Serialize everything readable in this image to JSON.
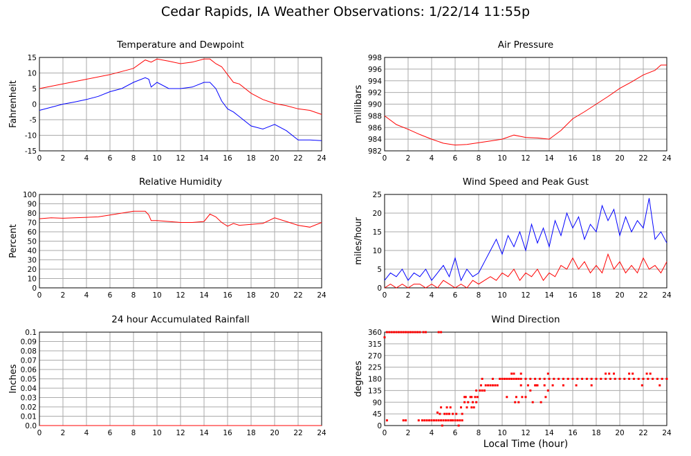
{
  "page_title": "Cedar Rapids, IA Weather Observations: 1/22/14 11:55p",
  "x_axis_label": "Local Time (hour)",
  "colors": {
    "red": "#ff0000",
    "blue": "#0000ff",
    "grid": "#aaaaaa"
  },
  "chart_data": [
    {
      "id": "temp",
      "type": "line",
      "title": "Temperature and Dewpoint",
      "xlabel": "",
      "ylabel": "Fahrenheit",
      "xlim": [
        0,
        24
      ],
      "ylim": [
        -15,
        15
      ],
      "xticks": [
        0,
        2,
        4,
        6,
        8,
        10,
        12,
        14,
        16,
        18,
        20,
        22,
        24
      ],
      "yticks": [
        -15,
        -10,
        -5,
        0,
        5,
        10,
        15
      ],
      "grid": true,
      "series": [
        {
          "color": "#ff0000",
          "x": [
            0,
            2,
            4,
            6,
            8,
            9,
            9.5,
            10,
            11,
            12,
            13,
            14,
            14.5,
            15,
            15.5,
            16,
            16.5,
            17,
            18,
            19,
            20,
            21,
            22,
            23,
            24
          ],
          "y": [
            5,
            6.5,
            8,
            9.5,
            11.5,
            14.2,
            13.5,
            14.5,
            13.8,
            13,
            13.5,
            14.5,
            14.5,
            13,
            12,
            9.5,
            7,
            6.5,
            3.5,
            1.5,
            0.2,
            -0.5,
            -1.5,
            -2,
            -3.3
          ]
        },
        {
          "color": "#0000ff",
          "x": [
            0,
            1,
            2,
            3,
            4,
            5,
            6,
            7,
            8,
            9,
            9.3,
            9.5,
            10,
            11,
            12,
            13,
            14,
            14.5,
            15,
            15.5,
            16,
            16.5,
            17,
            18,
            19,
            20,
            21,
            22,
            23,
            24
          ],
          "y": [
            -2,
            -1,
            0,
            0.7,
            1.5,
            2.5,
            4,
            5,
            7,
            8.5,
            8,
            5.5,
            7,
            5,
            5,
            5.5,
            7,
            7,
            5,
            1,
            -1.5,
            -2.5,
            -4,
            -7,
            -8,
            -6.5,
            -8.5,
            -11.5,
            -11.5,
            -11.7
          ]
        }
      ]
    },
    {
      "id": "pressure",
      "type": "line",
      "title": "Air Pressure",
      "xlabel": "",
      "ylabel": "millibars",
      "xlim": [
        0,
        24
      ],
      "ylim": [
        982,
        998
      ],
      "xticks": [
        0,
        2,
        4,
        6,
        8,
        10,
        12,
        14,
        16,
        18,
        20,
        22,
        24
      ],
      "yticks": [
        982,
        984,
        986,
        988,
        990,
        992,
        994,
        996,
        998
      ],
      "grid": true,
      "series": [
        {
          "color": "#ff0000",
          "x": [
            0,
            1,
            2,
            3,
            4,
            5,
            6,
            7,
            8,
            9,
            10,
            11,
            12,
            13,
            14,
            15,
            16,
            17,
            18,
            19,
            20,
            21,
            22,
            23,
            23.5,
            24
          ],
          "y": [
            988,
            986.5,
            985.7,
            984.8,
            984,
            983.3,
            983,
            983.1,
            983.4,
            983.7,
            984,
            984.7,
            984.3,
            984.2,
            984,
            985.5,
            987.5,
            988.7,
            990,
            991.3,
            992.7,
            993.8,
            995,
            995.8,
            996.7,
            996.7
          ]
        }
      ]
    },
    {
      "id": "rh",
      "type": "line",
      "title": "Relative Humidity",
      "xlabel": "",
      "ylabel": "Percent",
      "xlim": [
        0,
        24
      ],
      "ylim": [
        0,
        100
      ],
      "xticks": [
        0,
        2,
        4,
        6,
        8,
        10,
        12,
        14,
        16,
        18,
        20,
        22,
        24
      ],
      "yticks": [
        0,
        10,
        20,
        30,
        40,
        50,
        60,
        70,
        80,
        90,
        100
      ],
      "grid": true,
      "series": [
        {
          "color": "#ff0000",
          "x": [
            0,
            1,
            2,
            3,
            4,
            5,
            6,
            7,
            8,
            9,
            9.3,
            9.5,
            10,
            11,
            12,
            13,
            14,
            14.5,
            15,
            15.5,
            16,
            16.5,
            17,
            18,
            19,
            20,
            21,
            22,
            23,
            24
          ],
          "y": [
            74,
            75,
            74.5,
            75,
            75.5,
            76,
            78,
            80,
            82,
            82,
            78,
            72,
            72,
            71,
            70,
            70,
            71,
            79,
            76,
            70,
            66,
            69,
            67,
            68,
            69,
            75,
            71,
            67,
            65,
            70
          ]
        }
      ]
    },
    {
      "id": "wind",
      "type": "line",
      "title": "Wind Speed and Peak Gust",
      "xlabel": "",
      "ylabel": "miles/hour",
      "xlim": [
        0,
        24
      ],
      "ylim": [
        0,
        25
      ],
      "xticks": [
        0,
        2,
        4,
        6,
        8,
        10,
        12,
        14,
        16,
        18,
        20,
        22,
        24
      ],
      "yticks": [
        0,
        5,
        10,
        15,
        20,
        25
      ],
      "grid": true,
      "series": [
        {
          "color": "#0000ff",
          "x": [
            0,
            0.5,
            1,
            1.5,
            2,
            2.5,
            3,
            3.5,
            4,
            4.5,
            5,
            5.5,
            6,
            6.5,
            7,
            7.5,
            8,
            8.5,
            9,
            9.5,
            10,
            10.5,
            11,
            11.5,
            12,
            12.5,
            13,
            13.5,
            14,
            14.5,
            15,
            15.5,
            16,
            16.5,
            17,
            17.5,
            18,
            18.5,
            19,
            19.5,
            20,
            20.5,
            21,
            21.5,
            22,
            22.5,
            23,
            23.5,
            24
          ],
          "y": [
            2,
            4,
            3,
            5,
            2,
            4,
            3,
            5,
            2,
            4,
            6,
            3,
            8,
            2,
            5,
            3,
            4,
            7,
            10,
            13,
            9,
            14,
            11,
            15,
            10,
            17,
            12,
            16,
            11,
            18,
            14,
            20,
            16,
            19,
            13,
            17,
            15,
            22,
            18,
            21,
            14,
            19,
            15,
            18,
            16,
            24,
            13,
            15,
            12
          ]
        },
        {
          "color": "#ff0000",
          "x": [
            0,
            0.5,
            1,
            1.5,
            2,
            2.5,
            3,
            3.5,
            4,
            4.5,
            5,
            5.5,
            6,
            6.5,
            7,
            7.5,
            8,
            8.5,
            9,
            9.5,
            10,
            10.5,
            11,
            11.5,
            12,
            12.5,
            13,
            13.5,
            14,
            14.5,
            15,
            15.5,
            16,
            16.5,
            17,
            17.5,
            18,
            18.5,
            19,
            19.5,
            20,
            20.5,
            21,
            21.5,
            22,
            22.5,
            23,
            23.5,
            24
          ],
          "y": [
            0,
            1,
            0,
            1,
            0,
            1,
            1,
            0,
            1,
            0,
            2,
            1,
            0,
            1,
            0,
            2,
            1,
            2,
            3,
            2,
            4,
            3,
            5,
            2,
            4,
            3,
            5,
            2,
            4,
            3,
            6,
            5,
            8,
            5,
            7,
            4,
            6,
            4,
            9,
            5,
            7,
            4,
            6,
            4,
            8,
            5,
            6,
            4,
            7
          ]
        }
      ]
    },
    {
      "id": "rain",
      "type": "line",
      "title": "24 hour Accumulated Rainfall",
      "xlabel": "",
      "ylabel": "Inches",
      "xlim": [
        0,
        24
      ],
      "ylim": [
        0,
        0.1
      ],
      "xticks": [
        0,
        2,
        4,
        6,
        8,
        10,
        12,
        14,
        16,
        18,
        20,
        22,
        24
      ],
      "yticks": [
        0.0,
        0.01,
        0.02,
        0.03,
        0.04,
        0.05,
        0.06,
        0.07,
        0.08,
        0.09,
        0.1
      ],
      "yticklabels": [
        "0.0",
        "0.01",
        "0.02",
        "0.03",
        "0.04",
        "0.05",
        "0.06",
        "0.07",
        "0.08",
        "0.09",
        "0.1"
      ],
      "grid": true,
      "series": [
        {
          "color": "#ff0000",
          "x": [
            0,
            24
          ],
          "y": [
            0,
            0
          ]
        }
      ]
    },
    {
      "id": "winddir",
      "type": "scatter",
      "title": "Wind Direction",
      "xlabel": "",
      "ylabel": "degrees",
      "xlim": [
        0,
        24
      ],
      "ylim": [
        0,
        360
      ],
      "xticks": [
        0,
        2,
        4,
        6,
        8,
        10,
        12,
        14,
        16,
        18,
        20,
        22,
        24
      ],
      "yticks": [
        0,
        45,
        90,
        135,
        180,
        225,
        270,
        315,
        360
      ],
      "grid": true,
      "series": [
        {
          "color": "#ff0000",
          "x": [
            0,
            0.2,
            0.4,
            0.6,
            0.8,
            1,
            1.2,
            1.4,
            1.6,
            1.8,
            2,
            2.2,
            2.4,
            2.6,
            2.8,
            3,
            3.3,
            3.5,
            4.6,
            4.8,
            0.2,
            1.6,
            1.8,
            2.9,
            3.2,
            3.4,
            3.6,
            3.8,
            4,
            4.2,
            4.4,
            4.6,
            4.8,
            5,
            5.2,
            5.4,
            5.6,
            5.8,
            6,
            6.2,
            6.4,
            6.6,
            4.5,
            4.7,
            5.1,
            5.5,
            6.1,
            6.6,
            4.8,
            5.3,
            6.5,
            7,
            7.4,
            7.6,
            5.3,
            5.8,
            6.8,
            7.1,
            7.5,
            7.8,
            6.8,
            7.4,
            7.9,
            5.6,
            6.9,
            7.3,
            7.7,
            8.1,
            8.3,
            8.5,
            7.8,
            8.2,
            8.6,
            9,
            8.3,
            9.2,
            8.8,
            9.2,
            9.4,
            9.6,
            9.8,
            10,
            10.2,
            10.4,
            10.6,
            10.8,
            11,
            11.2,
            11.4,
            11.6,
            12,
            12.4,
            12.8,
            13.2,
            13.6,
            14,
            14.4,
            14.8,
            15.2,
            15.6,
            16,
            16.4,
            16.8,
            17.2,
            17.6,
            18,
            18.4,
            18.8,
            19.2,
            19.6,
            20,
            20.4,
            20.8,
            21.2,
            21.6,
            22,
            22.4,
            22.8,
            23.2,
            23.6,
            24,
            10.4,
            11.2,
            11.6,
            12.2,
            13,
            14.3,
            11.7,
            12,
            12.4,
            12.8,
            12.9,
            13.6,
            11.1,
            12.6,
            13.3,
            13.7,
            13.9,
            15.2,
            16.3,
            17.6,
            21.9,
            23.4,
            11,
            18.8,
            19.1,
            19.5,
            20.8,
            21.1,
            22.3,
            22.6,
            10.8,
            11.6,
            13.9,
            4.9,
            6.3,
            5.7,
            11.4
          ],
          "y": [
            340,
            360,
            360,
            360,
            360,
            360,
            360,
            360,
            360,
            360,
            360,
            360,
            360,
            360,
            360,
            360,
            360,
            360,
            360,
            360,
            20,
            20,
            20,
            20,
            20,
            20,
            20,
            20,
            20,
            20,
            20,
            20,
            20,
            20,
            20,
            20,
            20,
            20,
            20,
            20,
            20,
            20,
            50,
            45,
            45,
            45,
            45,
            45,
            70,
            70,
            70,
            70,
            70,
            70,
            45,
            45,
            90,
            90,
            90,
            90,
            110,
            110,
            110,
            70,
            110,
            110,
            110,
            135,
            135,
            135,
            135,
            155,
            155,
            155,
            180,
            180,
            155,
            155,
            155,
            155,
            180,
            180,
            180,
            180,
            180,
            180,
            180,
            180,
            180,
            180,
            180,
            180,
            180,
            180,
            180,
            180,
            180,
            180,
            180,
            180,
            180,
            180,
            180,
            180,
            180,
            180,
            180,
            180,
            180,
            180,
            180,
            180,
            180,
            180,
            180,
            180,
            180,
            180,
            180,
            180,
            180,
            110,
            110,
            155,
            155,
            155,
            155,
            110,
            110,
            135,
            155,
            155,
            155,
            90,
            90,
            90,
            110,
            135,
            155,
            155,
            155,
            155,
            155,
            200,
            200,
            200,
            200,
            200,
            200,
            200,
            200,
            200,
            200,
            200,
            0,
            0,
            20,
            90
          ]
        }
      ]
    }
  ]
}
